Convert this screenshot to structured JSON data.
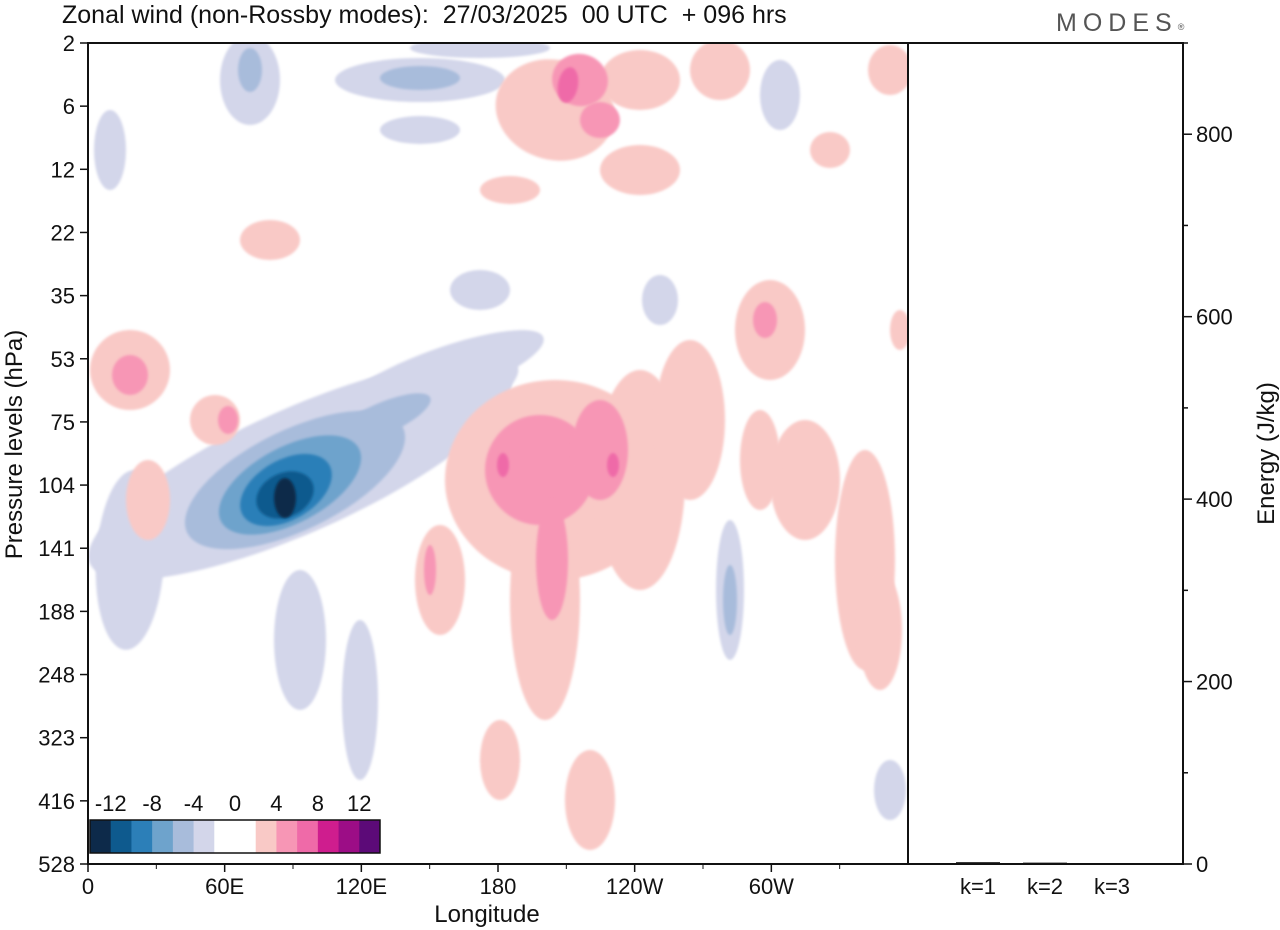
{
  "title": "Zonal wind (non-Rossby modes):  27/03/2025  00 UTC  + 096 hrs",
  "brand": "MODES",
  "brand_mark": "®",
  "colors": {
    "neg": [
      "#0d2a4a",
      "#0e5a8e",
      "#2c7fb8",
      "#6ea3cc",
      "#a8bcdb",
      "#d3d6ea"
    ],
    "zero": "#ffffff",
    "pos": [
      "#f9c9c6",
      "#f796b5",
      "#ef6aa8",
      "#cf1d8e",
      "#9c0d86",
      "#5c0a78"
    ]
  },
  "chart_data": [
    {
      "type": "heatmap",
      "title": "Zonal wind (non-Rossby modes):  27/03/2025  00 UTC  + 096 hrs",
      "xlabel": "Longitude",
      "ylabel": "Pressure levels (hPa)",
      "x_ticks": [
        "0",
        "60E",
        "120E",
        "180",
        "120W",
        "60W"
      ],
      "x_tick_values": [
        0,
        60,
        120,
        180,
        240,
        300
      ],
      "xlim": [
        0,
        360
      ],
      "y_ticks": [
        "2",
        "6",
        "12",
        "22",
        "35",
        "53",
        "75",
        "104",
        "141",
        "188",
        "248",
        "323",
        "416",
        "528"
      ],
      "colorbar_labels": [
        "-12",
        "-8",
        "-4",
        "0",
        "4",
        "8",
        "12"
      ],
      "colorbar_levels": [
        -14,
        -12,
        -10,
        -8,
        -6,
        -4,
        -2,
        2,
        4,
        6,
        8,
        10,
        12,
        14
      ],
      "features": [
        {
          "sign": "neg",
          "lon": 87,
          "level": "104",
          "peak": -13,
          "desc": "strong negative core"
        },
        {
          "sign": "pos",
          "lon": 183,
          "level": "104",
          "peak": 7
        },
        {
          "sign": "pos",
          "lon": 230,
          "level": "104",
          "peak": 7
        },
        {
          "sign": "pos",
          "lon": 210,
          "level": "6",
          "peak": 7
        },
        {
          "sign": "pos",
          "lon": 18,
          "level": "53",
          "peak": 5
        },
        {
          "sign": "pos",
          "lon": 300,
          "level": "35",
          "peak": 5
        },
        {
          "sign": "neg",
          "lon": 280,
          "level": "188",
          "peak": -5
        },
        {
          "sign": "neg",
          "lon": 140,
          "level": "6",
          "peak": -5
        }
      ]
    },
    {
      "type": "bar",
      "ylabel": "Energy (J/kg)",
      "categories": [
        "k=1",
        "k=2",
        "k=3"
      ],
      "values": [
        2,
        1.5,
        1
      ],
      "ylim": [
        0,
        900
      ],
      "y_ticks": [
        0,
        200,
        400,
        600,
        800
      ]
    }
  ]
}
